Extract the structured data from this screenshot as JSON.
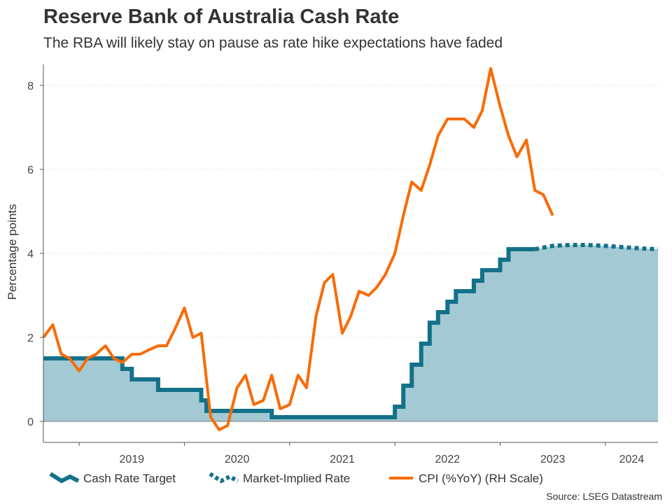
{
  "colors": {
    "cash_rate": "#137189",
    "fill": "#a3cad4",
    "cpi": "#f96b06",
    "axis": "#555555",
    "grid": "#e3e3e3"
  },
  "chart_data": {
    "type": "line",
    "title": "Reserve Bank of Australia Cash Rate",
    "subtitle": "The RBA will likely stay on pause as rate hike expectations have faded",
    "ylabel": "Percentage points",
    "ylim": [
      -0.5,
      8.5
    ],
    "xlim": [
      2018.33,
      2024.17
    ],
    "yticks": [
      {
        "value": 0,
        "label": "0"
      },
      {
        "value": 2,
        "label": "2"
      },
      {
        "value": 4,
        "label": "4"
      },
      {
        "value": 6,
        "label": "6"
      },
      {
        "value": 8,
        "label": "8"
      }
    ],
    "xticks": [
      2018.67,
      2019.67,
      2020.67,
      2021.67,
      2022.67,
      2023.67
    ],
    "xlabels": [
      {
        "value": 2019.17,
        "label": "2019"
      },
      {
        "value": 2020.17,
        "label": "2020"
      },
      {
        "value": 2021.17,
        "label": "2021"
      },
      {
        "value": 2022.17,
        "label": "2022"
      },
      {
        "value": 2023.17,
        "label": "2023"
      },
      {
        "value": 2023.67,
        "label": "2024"
      }
    ],
    "series": [
      {
        "name": "Cash Rate Target",
        "style": "step",
        "points": [
          [
            2018.33,
            1.5
          ],
          [
            2019.08,
            1.5
          ],
          [
            2019.08,
            1.25
          ],
          [
            2019.17,
            1.25
          ],
          [
            2019.17,
            1.0
          ],
          [
            2019.42,
            1.0
          ],
          [
            2019.42,
            0.75
          ],
          [
            2019.83,
            0.75
          ],
          [
            2019.83,
            0.5
          ],
          [
            2019.88,
            0.5
          ],
          [
            2019.88,
            0.25
          ],
          [
            2020.5,
            0.25
          ],
          [
            2020.5,
            0.1
          ],
          [
            2021.67,
            0.1
          ],
          [
            2021.67,
            0.35
          ],
          [
            2021.75,
            0.35
          ],
          [
            2021.75,
            0.85
          ],
          [
            2021.83,
            0.85
          ],
          [
            2021.83,
            1.35
          ],
          [
            2021.92,
            1.35
          ],
          [
            2021.92,
            1.85
          ],
          [
            2022.0,
            1.85
          ],
          [
            2022.0,
            2.35
          ],
          [
            2022.08,
            2.35
          ],
          [
            2022.08,
            2.6
          ],
          [
            2022.17,
            2.6
          ],
          [
            2022.17,
            2.85
          ],
          [
            2022.25,
            2.85
          ],
          [
            2022.25,
            3.1
          ],
          [
            2022.42,
            3.1
          ],
          [
            2022.42,
            3.35
          ],
          [
            2022.5,
            3.35
          ],
          [
            2022.5,
            3.6
          ],
          [
            2022.67,
            3.6
          ],
          [
            2022.67,
            3.85
          ],
          [
            2022.75,
            3.85
          ],
          [
            2022.75,
            4.1
          ],
          [
            2023.0,
            4.1
          ]
        ]
      },
      {
        "name": "Market-Implied Rate",
        "style": "dotted",
        "points": [
          [
            2023.0,
            4.1
          ],
          [
            2023.17,
            4.18
          ],
          [
            2023.33,
            4.2
          ],
          [
            2023.5,
            4.2
          ],
          [
            2023.67,
            4.18
          ],
          [
            2023.83,
            4.15
          ],
          [
            2024.0,
            4.12
          ],
          [
            2024.17,
            4.1
          ]
        ]
      },
      {
        "name": "CPI (%YoY) (RH Scale)",
        "style": "line",
        "points": [
          [
            2018.33,
            2.0
          ],
          [
            2018.42,
            2.3
          ],
          [
            2018.5,
            1.6
          ],
          [
            2018.58,
            1.5
          ],
          [
            2018.67,
            1.2
          ],
          [
            2018.75,
            1.5
          ],
          [
            2018.83,
            1.6
          ],
          [
            2018.92,
            1.8
          ],
          [
            2019.0,
            1.5
          ],
          [
            2019.08,
            1.4
          ],
          [
            2019.17,
            1.6
          ],
          [
            2019.25,
            1.6
          ],
          [
            2019.33,
            1.7
          ],
          [
            2019.42,
            1.8
          ],
          [
            2019.5,
            1.8
          ],
          [
            2019.58,
            2.2
          ],
          [
            2019.67,
            2.7
          ],
          [
            2019.75,
            2.0
          ],
          [
            2019.83,
            2.1
          ],
          [
            2019.92,
            0.1
          ],
          [
            2020.0,
            -0.2
          ],
          [
            2020.08,
            -0.1
          ],
          [
            2020.17,
            0.8
          ],
          [
            2020.25,
            1.1
          ],
          [
            2020.33,
            0.4
          ],
          [
            2020.42,
            0.5
          ],
          [
            2020.5,
            1.1
          ],
          [
            2020.58,
            0.3
          ],
          [
            2020.67,
            0.4
          ],
          [
            2020.75,
            1.1
          ],
          [
            2020.83,
            0.8
          ],
          [
            2020.92,
            2.5
          ],
          [
            2021.0,
            3.3
          ],
          [
            2021.08,
            3.5
          ],
          [
            2021.17,
            2.1
          ],
          [
            2021.25,
            2.5
          ],
          [
            2021.33,
            3.1
          ],
          [
            2021.42,
            3.0
          ],
          [
            2021.5,
            3.2
          ],
          [
            2021.58,
            3.5
          ],
          [
            2021.67,
            4.0
          ],
          [
            2021.75,
            4.9
          ],
          [
            2021.83,
            5.7
          ],
          [
            2021.92,
            5.5
          ],
          [
            2022.0,
            6.1
          ],
          [
            2022.08,
            6.8
          ],
          [
            2022.17,
            7.2
          ],
          [
            2022.25,
            7.2
          ],
          [
            2022.33,
            7.2
          ],
          [
            2022.42,
            7.0
          ],
          [
            2022.5,
            7.4
          ],
          [
            2022.58,
            8.4
          ],
          [
            2022.67,
            7.5
          ],
          [
            2022.75,
            6.8
          ],
          [
            2022.83,
            6.3
          ],
          [
            2022.92,
            6.7
          ],
          [
            2023.0,
            5.5
          ],
          [
            2023.08,
            5.4
          ],
          [
            2023.17,
            4.9
          ]
        ]
      }
    ],
    "legend": {
      "placement": "bottom",
      "items": [
        "Cash Rate Target",
        "Market-Implied Rate",
        "CPI (%YoY) (RH Scale)"
      ]
    },
    "source": "Source: LSEG Datastream"
  }
}
